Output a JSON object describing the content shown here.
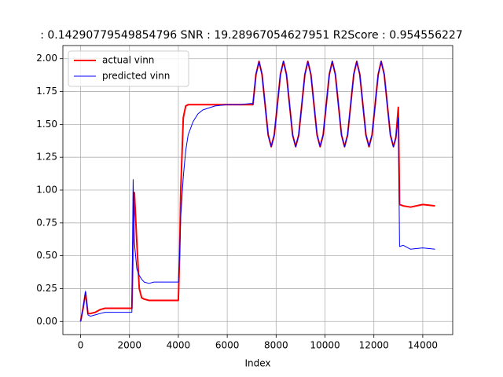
{
  "chart_data": {
    "type": "line",
    "title": ": 0.14290779549854796  SNR : 19.28967054627951 R2Score : 0.954556227",
    "xlabel": "Index",
    "x": [
      0,
      100,
      200,
      300,
      400,
      600,
      800,
      1000,
      1500,
      2000,
      2100,
      2150,
      2200,
      2300,
      2400,
      2500,
      2600,
      2800,
      3000,
      3500,
      4000,
      4050,
      4100,
      4200,
      4300,
      4400,
      4600,
      4800,
      5000,
      5500,
      6000,
      6500,
      7000,
      7050,
      7175,
      7300,
      7425,
      7550,
      7675,
      7800,
      7925,
      8050,
      8175,
      8300,
      8425,
      8550,
      8675,
      8800,
      8925,
      9050,
      9175,
      9300,
      9425,
      9550,
      9675,
      9800,
      9925,
      10050,
      10175,
      10300,
      10425,
      10550,
      10675,
      10800,
      10925,
      11050,
      11175,
      11300,
      11425,
      11550,
      11675,
      11800,
      11925,
      12050,
      12175,
      12300,
      12425,
      12550,
      12675,
      12800,
      12900,
      13000,
      13050,
      13200,
      13500,
      14000,
      14500
    ],
    "series": [
      {
        "name": "actual vinn",
        "color": "#ff0000",
        "width": 2,
        "values": [
          0,
          0.1,
          0.22,
          0.06,
          0.06,
          0.07,
          0.09,
          0.1,
          0.1,
          0.1,
          0.1,
          0.6,
          0.98,
          0.6,
          0.25,
          0.18,
          0.17,
          0.16,
          0.16,
          0.16,
          0.16,
          0.5,
          1.0,
          1.55,
          1.64,
          1.65,
          1.65,
          1.65,
          1.65,
          1.65,
          1.65,
          1.65,
          1.65,
          1.65,
          1.88,
          1.98,
          1.88,
          1.65,
          1.42,
          1.33,
          1.42,
          1.65,
          1.88,
          1.98,
          1.88,
          1.65,
          1.42,
          1.33,
          1.42,
          1.65,
          1.88,
          1.98,
          1.88,
          1.65,
          1.42,
          1.33,
          1.42,
          1.65,
          1.88,
          1.98,
          1.88,
          1.65,
          1.42,
          1.33,
          1.42,
          1.65,
          1.88,
          1.98,
          1.88,
          1.65,
          1.42,
          1.33,
          1.42,
          1.65,
          1.88,
          1.98,
          1.88,
          1.65,
          1.42,
          1.33,
          1.4,
          1.63,
          0.89,
          0.88,
          0.87,
          0.89,
          0.88
        ]
      },
      {
        "name": "predicted vinn",
        "color": "#0000ff",
        "width": 1,
        "values": [
          0,
          0.1,
          0.23,
          0.05,
          0.04,
          0.05,
          0.06,
          0.07,
          0.07,
          0.07,
          0.07,
          1.08,
          0.6,
          0.4,
          0.35,
          0.32,
          0.3,
          0.29,
          0.3,
          0.3,
          0.3,
          0.5,
          0.8,
          1.1,
          1.3,
          1.42,
          1.52,
          1.58,
          1.61,
          1.64,
          1.65,
          1.65,
          1.66,
          1.65,
          1.88,
          1.98,
          1.88,
          1.65,
          1.42,
          1.33,
          1.42,
          1.65,
          1.88,
          1.98,
          1.88,
          1.65,
          1.42,
          1.33,
          1.42,
          1.65,
          1.88,
          1.98,
          1.88,
          1.65,
          1.42,
          1.33,
          1.42,
          1.65,
          1.88,
          1.98,
          1.88,
          1.65,
          1.42,
          1.33,
          1.42,
          1.65,
          1.88,
          1.98,
          1.88,
          1.65,
          1.42,
          1.33,
          1.42,
          1.65,
          1.88,
          1.98,
          1.88,
          1.65,
          1.42,
          1.33,
          1.4,
          1.55,
          0.57,
          0.58,
          0.55,
          0.56,
          0.55
        ]
      }
    ],
    "xlim": [
      -725,
      15225
    ],
    "xticks": [
      0,
      2000,
      4000,
      6000,
      8000,
      10000,
      12000,
      14000
    ],
    "ylim": [
      -0.1,
      2.1
    ],
    "yticks": [
      {
        "value": 0,
        "label": "0.00"
      },
      {
        "value": 0.25,
        "label": "0.25"
      },
      {
        "value": 0.5,
        "label": "0.50"
      },
      {
        "value": 0.75,
        "label": "0.75"
      },
      {
        "value": 1,
        "label": "1.00"
      },
      {
        "value": 1.25,
        "label": "1.25"
      },
      {
        "value": 1.5,
        "label": "1.50"
      },
      {
        "value": 1.75,
        "label": "1.75"
      },
      {
        "value": 2,
        "label": "2.00"
      }
    ],
    "grid": true,
    "legend": "upper left"
  }
}
